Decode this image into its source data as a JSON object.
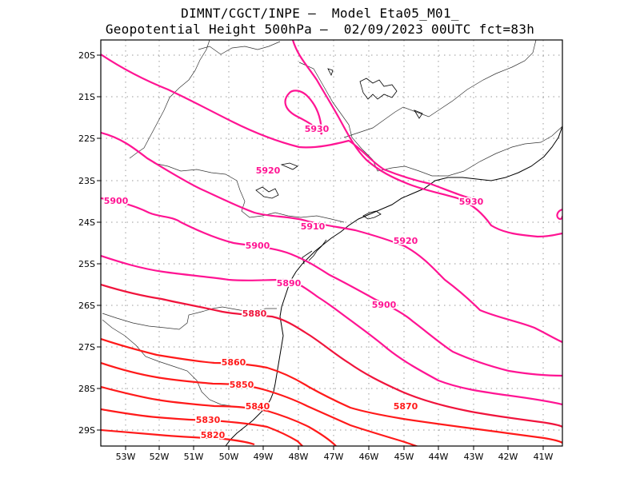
{
  "title": {
    "line1": "DIMNT/CGCT/INPE –  Model Eta05_M01_",
    "line2": "Geopotential Height 500hPa –  02/09/2023 00UTC fct=83h"
  },
  "colors": {
    "magenta": "#ff1493",
    "red": "#ff1a1a",
    "crimson": "#f0143c",
    "grid": "#9a9a9a",
    "coast": "#000000",
    "border": "#444444"
  },
  "axes": {
    "lat_labels": [
      "20S",
      "21S",
      "22S",
      "23S",
      "24S",
      "25S",
      "26S",
      "27S",
      "28S",
      "29S"
    ],
    "lon_labels": [
      "53W",
      "52W",
      "51W",
      "50W",
      "49W",
      "48W",
      "47W",
      "46W",
      "45W",
      "44W",
      "43W",
      "42W",
      "41W"
    ]
  },
  "contour_labels": [
    {
      "text": "5930",
      "color": "magenta"
    },
    {
      "text": "5930",
      "color": "magenta"
    },
    {
      "text": "5920",
      "color": "magenta"
    },
    {
      "text": "5920",
      "color": "magenta"
    },
    {
      "text": "5910",
      "color": "magenta"
    },
    {
      "text": "5900",
      "color": "magenta"
    },
    {
      "text": "5900",
      "color": "magenta"
    },
    {
      "text": "5900",
      "color": "magenta"
    },
    {
      "text": "5890",
      "color": "magenta"
    },
    {
      "text": "5880",
      "color": "crimson"
    },
    {
      "text": "5870",
      "color": "red"
    },
    {
      "text": "5860",
      "color": "red"
    },
    {
      "text": "5850",
      "color": "red"
    },
    {
      "text": "5840",
      "color": "red"
    },
    {
      "text": "5830",
      "color": "red"
    },
    {
      "text": "5820",
      "color": "red"
    }
  ]
}
